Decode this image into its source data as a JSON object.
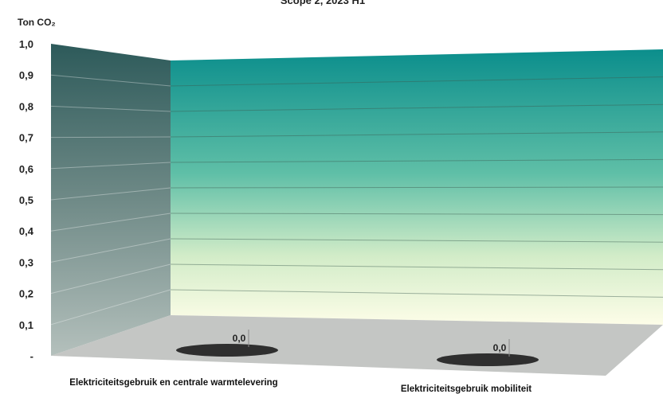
{
  "chart_data": {
    "type": "bar",
    "title": "Scope 2, 2023 H1",
    "ylabel": "Ton CO₂",
    "ylim": [
      0,
      1.0
    ],
    "yticks": [
      "-",
      "0,1",
      "0,2",
      "0,3",
      "0,4",
      "0,5",
      "0,6",
      "0,7",
      "0,8",
      "0,9",
      "1,0"
    ],
    "categories": [
      "Elektriciteitsgebruik en centrale warmtelevering",
      "Elektriciteitsgebruik mobiliteit"
    ],
    "values": [
      0.0,
      0.0
    ],
    "data_labels": [
      "0,0",
      "0,0"
    ],
    "grid": true,
    "style": "3d",
    "colors": {
      "back_wall_top": "#0b8e8c",
      "back_wall_mid": "#5fbfa7",
      "back_wall_bottom": "#fdfde8",
      "side_wall_top": "#2d5a5a",
      "side_wall_bottom": "#a8b8b4",
      "floor": "#c4c6c4",
      "bar_base": "#2f2f2f"
    }
  }
}
